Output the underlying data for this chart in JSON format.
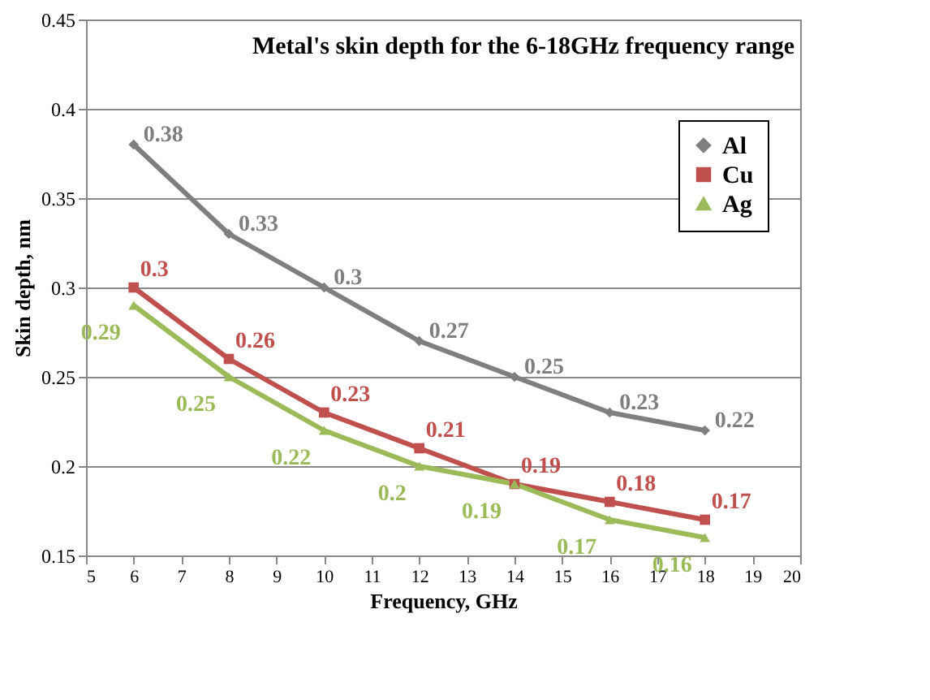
{
  "chart_data": {
    "type": "line",
    "title": "Metal's skin depth for the 6-18GHz frequency range",
    "xlabel": "Frequency, GHz",
    "ylabel": "Skin depth, nm",
    "x": [
      6,
      8,
      10,
      12,
      14,
      16,
      18
    ],
    "series": [
      {
        "name": "Al",
        "color": "#7f7f7f",
        "marker": "diamond",
        "values": [
          0.38,
          0.33,
          0.3,
          0.27,
          0.25,
          0.23,
          0.22
        ]
      },
      {
        "name": "Cu",
        "color": "#c0504d",
        "marker": "square",
        "values": [
          0.3,
          0.26,
          0.23,
          0.21,
          0.19,
          0.18,
          0.17
        ]
      },
      {
        "name": "Ag",
        "color": "#9bbb59",
        "marker": "triangle",
        "values": [
          0.29,
          0.25,
          0.22,
          0.2,
          0.19,
          0.17,
          0.16
        ]
      }
    ],
    "xlim": [
      5,
      20
    ],
    "xticks": [
      5,
      6,
      7,
      8,
      9,
      10,
      11,
      12,
      13,
      14,
      15,
      16,
      17,
      18,
      19,
      20
    ],
    "ylim": [
      0.15,
      0.45
    ],
    "yticks": [
      0.15,
      0.2,
      0.25,
      0.3,
      0.35,
      0.4,
      0.45
    ],
    "grid": "y",
    "legend": "right",
    "data_labels": true
  }
}
